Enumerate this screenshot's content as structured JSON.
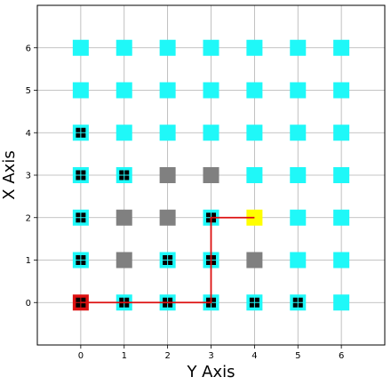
{
  "chart_data": {
    "type": "scatter",
    "xlabel": "Y Axis",
    "ylabel": "X Axis",
    "xlim": [
      -1,
      7
    ],
    "ylim": [
      -1,
      7
    ],
    "xticks": [
      "0",
      "1",
      "2",
      "3",
      "4",
      "5",
      "6"
    ],
    "yticks": [
      "0",
      "1",
      "2",
      "3",
      "4",
      "5",
      "6"
    ],
    "grid": true,
    "colors": {
      "open": "#1ff8f8",
      "blocked": "#808080",
      "start": "#dd1111",
      "goal": "#ffff00",
      "path": "#dd1111",
      "visited_marker": "#000000"
    },
    "cells": [
      {
        "x": 0,
        "y": 6,
        "state": "open"
      },
      {
        "x": 1,
        "y": 6,
        "state": "open"
      },
      {
        "x": 2,
        "y": 6,
        "state": "open"
      },
      {
        "x": 3,
        "y": 6,
        "state": "open"
      },
      {
        "x": 4,
        "y": 6,
        "state": "open"
      },
      {
        "x": 5,
        "y": 6,
        "state": "open"
      },
      {
        "x": 6,
        "y": 6,
        "state": "open"
      },
      {
        "x": 0,
        "y": 5,
        "state": "open"
      },
      {
        "x": 1,
        "y": 5,
        "state": "open"
      },
      {
        "x": 2,
        "y": 5,
        "state": "open"
      },
      {
        "x": 3,
        "y": 5,
        "state": "open"
      },
      {
        "x": 4,
        "y": 5,
        "state": "open"
      },
      {
        "x": 5,
        "y": 5,
        "state": "open"
      },
      {
        "x": 6,
        "y": 5,
        "state": "open"
      },
      {
        "x": 0,
        "y": 4,
        "state": "open",
        "visited": true
      },
      {
        "x": 1,
        "y": 4,
        "state": "open"
      },
      {
        "x": 2,
        "y": 4,
        "state": "open"
      },
      {
        "x": 3,
        "y": 4,
        "state": "open"
      },
      {
        "x": 4,
        "y": 4,
        "state": "open"
      },
      {
        "x": 5,
        "y": 4,
        "state": "open"
      },
      {
        "x": 6,
        "y": 4,
        "state": "open"
      },
      {
        "x": 0,
        "y": 3,
        "state": "open",
        "visited": true
      },
      {
        "x": 1,
        "y": 3,
        "state": "open",
        "visited": true
      },
      {
        "x": 2,
        "y": 3,
        "state": "blocked"
      },
      {
        "x": 3,
        "y": 3,
        "state": "blocked"
      },
      {
        "x": 4,
        "y": 3,
        "state": "open"
      },
      {
        "x": 5,
        "y": 3,
        "state": "open"
      },
      {
        "x": 6,
        "y": 3,
        "state": "open"
      },
      {
        "x": 0,
        "y": 2,
        "state": "open",
        "visited": true
      },
      {
        "x": 1,
        "y": 2,
        "state": "blocked"
      },
      {
        "x": 2,
        "y": 2,
        "state": "blocked"
      },
      {
        "x": 3,
        "y": 2,
        "state": "open",
        "visited": true
      },
      {
        "x": 4,
        "y": 2,
        "state": "goal"
      },
      {
        "x": 5,
        "y": 2,
        "state": "open"
      },
      {
        "x": 6,
        "y": 2,
        "state": "open"
      },
      {
        "x": 0,
        "y": 1,
        "state": "open",
        "visited": true
      },
      {
        "x": 1,
        "y": 1,
        "state": "blocked"
      },
      {
        "x": 2,
        "y": 1,
        "state": "open",
        "visited": true
      },
      {
        "x": 3,
        "y": 1,
        "state": "open",
        "visited": true
      },
      {
        "x": 4,
        "y": 1,
        "state": "blocked"
      },
      {
        "x": 5,
        "y": 1,
        "state": "open"
      },
      {
        "x": 6,
        "y": 1,
        "state": "open"
      },
      {
        "x": 0,
        "y": 0,
        "state": "start",
        "visited": true
      },
      {
        "x": 1,
        "y": 0,
        "state": "open",
        "visited": true
      },
      {
        "x": 2,
        "y": 0,
        "state": "open",
        "visited": true
      },
      {
        "x": 3,
        "y": 0,
        "state": "open",
        "visited": true
      },
      {
        "x": 4,
        "y": 0,
        "state": "open",
        "visited": true
      },
      {
        "x": 5,
        "y": 0,
        "state": "open",
        "visited": true
      },
      {
        "x": 6,
        "y": 0,
        "state": "open"
      }
    ],
    "path": [
      [
        0,
        0
      ],
      [
        1,
        0
      ],
      [
        2,
        0
      ],
      [
        3,
        0
      ],
      [
        3,
        1
      ],
      [
        3,
        2
      ],
      [
        4,
        2
      ]
    ]
  }
}
